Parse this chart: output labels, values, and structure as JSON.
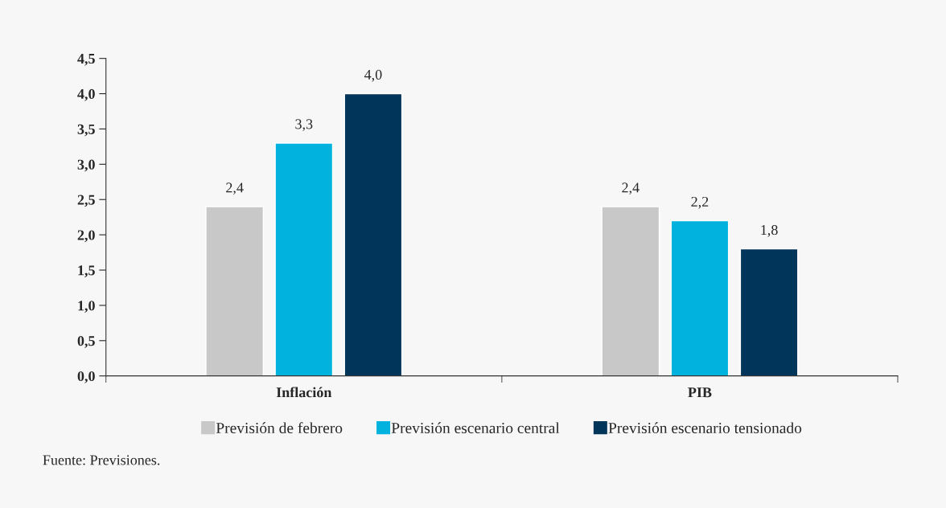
{
  "chart_data": {
    "type": "bar",
    "categories": [
      "Inflación",
      "PIB"
    ],
    "series": [
      {
        "name": "Previsión de febrero",
        "color": "#c8c8c8",
        "values": [
          2.4,
          2.4
        ],
        "value_labels": [
          "2,4",
          "2,4"
        ]
      },
      {
        "name": "Previsión escenario central",
        "color": "#00b2dd",
        "values": [
          3.3,
          2.2
        ],
        "value_labels": [
          "3,3",
          "2,2"
        ]
      },
      {
        "name": "Previsión escenario tensionado",
        "color": "#02355a",
        "values": [
          4.0,
          1.8
        ],
        "value_labels": [
          "4,0",
          "1,8"
        ]
      }
    ],
    "ylim": [
      0,
      4.5
    ],
    "yticks": [
      {
        "value": 0,
        "label": "0,0"
      },
      {
        "value": 0.5,
        "label": "0,5"
      },
      {
        "value": 1,
        "label": "1,0"
      },
      {
        "value": 1.5,
        "label": "1,5"
      },
      {
        "value": 2,
        "label": "2,0"
      },
      {
        "value": 2.5,
        "label": "2,5"
      },
      {
        "value": 3,
        "label": "3,0"
      },
      {
        "value": 3.5,
        "label": "3,5"
      },
      {
        "value": 4,
        "label": "4,0"
      },
      {
        "value": 4.5,
        "label": "4,5"
      }
    ],
    "grid": false,
    "legend": "bottom",
    "annotations": [
      "Fuente: Previsiones."
    ]
  }
}
